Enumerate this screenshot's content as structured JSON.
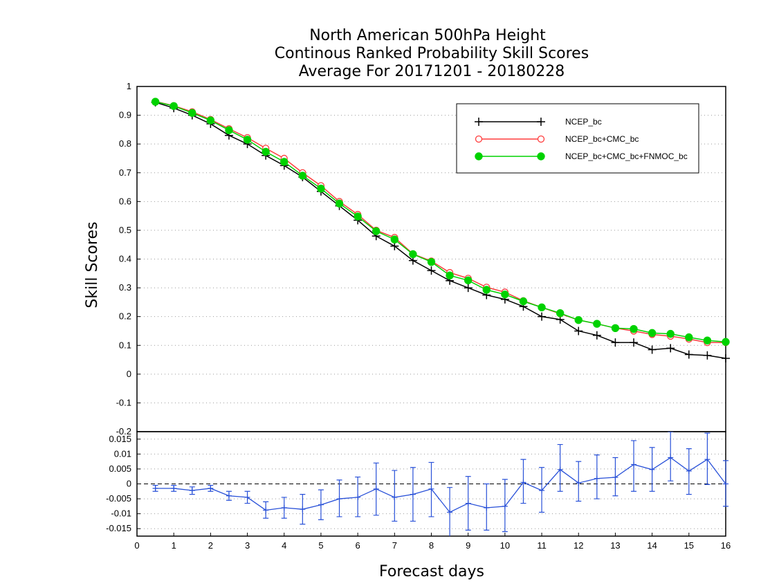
{
  "title_lines": [
    "North American 500hPa Height",
    "Continous Ranked Probability Skill Scores",
    "Average For 20171201 - 20180228"
  ],
  "chart_data": [
    {
      "type": "line",
      "ylabel": "Skill Scores",
      "xlim": [
        0,
        16
      ],
      "ylim": [
        -0.2,
        1
      ],
      "yticks": [
        "1",
        "0.9",
        "0.8",
        "0.7",
        "0.6",
        "0.5",
        "0.4",
        "0.3",
        "0.2",
        "0.1",
        "0",
        "-0.1",
        "-0.2"
      ],
      "grid": true,
      "legend_position": "top-right",
      "x": [
        0.5,
        1,
        1.5,
        2,
        2.5,
        3,
        3.5,
        4,
        4.5,
        5,
        5.5,
        6,
        6.5,
        7,
        7.5,
        8,
        8.5,
        9,
        9.5,
        10,
        10.5,
        11,
        11.5,
        12,
        12.5,
        13,
        13.5,
        14,
        14.5,
        15,
        15.5,
        16
      ],
      "series": [
        {
          "name": "NCEP_bc",
          "color": "#000000",
          "marker": "plus",
          "values": [
            0.945,
            0.925,
            0.9,
            0.87,
            0.83,
            0.8,
            0.76,
            0.725,
            0.685,
            0.635,
            0.585,
            0.535,
            0.48,
            0.445,
            0.395,
            0.36,
            0.325,
            0.3,
            0.275,
            0.26,
            0.235,
            0.2,
            0.19,
            0.15,
            0.135,
            0.11,
            0.11,
            0.085,
            0.09,
            0.068,
            0.065,
            0.055
          ]
        },
        {
          "name": "NCEP_bc+CMC_bc",
          "color": "#ff3b3b",
          "marker": "open-circle",
          "values": [
            0.948,
            0.933,
            0.912,
            0.885,
            0.853,
            0.822,
            0.785,
            0.75,
            0.7,
            0.655,
            0.6,
            0.555,
            0.5,
            0.475,
            0.418,
            0.393,
            0.353,
            0.333,
            0.302,
            0.285,
            0.255,
            0.232,
            0.21,
            0.188,
            0.175,
            0.16,
            0.15,
            0.138,
            0.132,
            0.122,
            0.11,
            0.11
          ]
        },
        {
          "name": "NCEP_bc+CMC_bc+FNMOC_bc",
          "color": "#00d200",
          "marker": "filled-circle",
          "values": [
            0.947,
            0.932,
            0.908,
            0.882,
            0.848,
            0.815,
            0.773,
            0.738,
            0.69,
            0.645,
            0.593,
            0.548,
            0.497,
            0.468,
            0.417,
            0.39,
            0.343,
            0.326,
            0.293,
            0.277,
            0.253,
            0.232,
            0.212,
            0.188,
            0.175,
            0.16,
            0.157,
            0.143,
            0.14,
            0.128,
            0.117,
            0.112
          ]
        }
      ]
    },
    {
      "type": "line",
      "xlabel": "Forecast days",
      "xlim": [
        0,
        16
      ],
      "ylim": [
        -0.0175,
        0.0175
      ],
      "xticks": [
        "0",
        "1",
        "2",
        "3",
        "4",
        "5",
        "6",
        "7",
        "8",
        "9",
        "10",
        "11",
        "12",
        "13",
        "14",
        "15",
        "16"
      ],
      "yticks": [
        "0.015",
        "0.01",
        "0.005",
        "0",
        "-0.005",
        "-0.01",
        "-0.015"
      ],
      "grid": true,
      "zero_line": "dashed",
      "x": [
        0.5,
        1,
        1.5,
        2,
        2.5,
        3,
        3.5,
        4,
        4.5,
        5,
        5.5,
        6,
        6.5,
        7,
        7.5,
        8,
        8.5,
        9,
        9.5,
        10,
        10.5,
        11,
        11.5,
        12,
        12.5,
        13,
        13.5,
        14,
        14.5,
        15,
        15.5,
        16
      ],
      "series": [
        {
          "color": "#2850d8",
          "marker": "plus",
          "error_bars": true,
          "values": [
            -0.0015,
            -0.0015,
            -0.0022,
            -0.0015,
            -0.004,
            -0.0045,
            -0.0088,
            -0.008,
            -0.0085,
            -0.007,
            -0.005,
            -0.0045,
            -0.0017,
            -0.0045,
            -0.0035,
            -0.0017,
            -0.0095,
            -0.0065,
            -0.008,
            -0.0075,
            0.0005,
            -0.0022,
            0.0048,
            0.0003,
            0.0018,
            0.0022,
            0.0065,
            0.0048,
            0.0088,
            0.0043,
            0.0082,
            0.0
          ],
          "lower": [
            -0.0025,
            -0.0025,
            -0.0035,
            -0.0025,
            -0.0055,
            -0.0065,
            -0.0115,
            -0.0115,
            -0.0135,
            -0.012,
            -0.011,
            -0.011,
            -0.0105,
            -0.0125,
            -0.0125,
            -0.011,
            -0.018,
            -0.0155,
            -0.0155,
            -0.016,
            -0.0065,
            -0.0095,
            -0.0025,
            -0.0058,
            -0.005,
            -0.004,
            -0.0025,
            -0.0025,
            0.001,
            -0.0035,
            -0.0002,
            -0.0075
          ],
          "upper": [
            -0.0005,
            -0.0005,
            -0.001,
            -0.0005,
            -0.0025,
            -0.0025,
            -0.006,
            -0.0045,
            -0.0035,
            -0.002,
            0.0013,
            0.0023,
            0.007,
            0.0045,
            0.0055,
            0.0072,
            -0.0012,
            0.0025,
            0.0,
            0.0015,
            0.0082,
            0.0055,
            0.0132,
            0.0075,
            0.0097,
            0.0088,
            0.0145,
            0.0122,
            0.0175,
            0.0118,
            0.017,
            0.0078
          ]
        }
      ]
    }
  ]
}
